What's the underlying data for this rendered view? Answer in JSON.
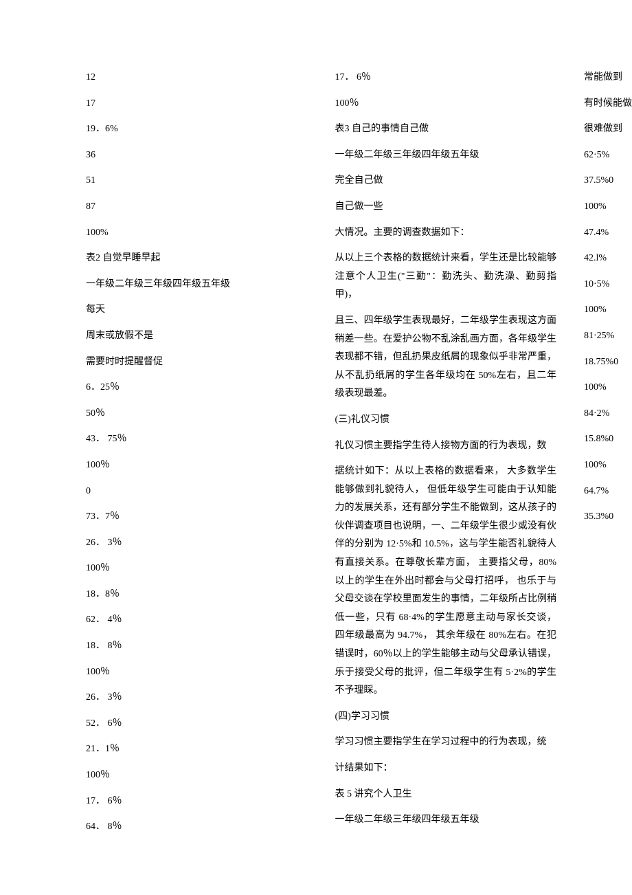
{
  "col1": {
    "lines_a": [
      "12",
      "17",
      "19．6%",
      "36",
      "51",
      "87",
      "100%"
    ],
    "table2_title": "表2  自觉早睡早起",
    "table2_grades": "一年级二年级三年级四年级五年级",
    "table2_rows": [
      "每天",
      "周末或放假不是",
      "需要时时提醒督促"
    ],
    "table2_vals": [
      "6．25％",
      "50％",
      "43． 75％",
      "100％",
      "0",
      "73．7％",
      "26． 3％",
      "100％",
      "18．8％",
      "62． 4％",
      "18． 8％",
      "100％",
      "26． 3％",
      "52． 6％",
      "21．1％",
      "100％",
      "17． 6％",
      "64． 8％",
      "17． 6％",
      "100％"
    ],
    "table3_title": "表3  自己的事情自己做",
    "table3_grades": "一年级二年级三年级四年级五年级",
    "table3_rows": [
      "完全自己做",
      "自己做一些"
    ],
    "table3_after": "大情况。主要的调查数据如下：",
    "summary1": "从以上三个表格的数据统计来看，学生还是比较能够注意个人卫生(\"三勤\"：勤洗头、勤洗澡、勤剪指甲)，"
  },
  "col2": {
    "para1": "且三、四年级学生表现最好，二年级学生表现这方面稍差一些。在爱护公物不乱涂乱画方面，各年级学生表现都不错，但乱扔果皮纸屑的现象似乎非常严重，从不乱扔纸屑的学生各年级均在 50%左右，且二年级表现最差。",
    "h3": "(三)礼仪习惯",
    "para2": "礼仪习惯主要指学生待人接物方面的行为表现，数",
    "para3": "据统计如下：从以上表格的数据看来， 大多数学生能够做到礼貌待人， 但低年级学生可能由于认知能力的发展关系，还有部分学生不能做到，这从孩子的伙伴调查项目也说明，一、二年级学生很少或没有伙伴的分别为 12·5%和 10.5%，这与学生能否礼貌待人有直接关系。在尊敬长辈方面， 主要指父母，80%以上的学生在外出时都会与父母打招呼， 也乐于与父母交谈在学校里面发生的事情，二年级所占比例稍低一些，只有 68·4%的学生愿意主动与家长交谈， 四年级最高为 94.7%， 其余年级在 80%左右。在犯错误时，60％以上的学生能够主动与父母承认错误，乐于接受父母的批评，但二年级学生有 5·2%的学生不予理睬。",
    "h4": "(四)学习习惯",
    "para4": "学习习惯主要指学生在学习过程中的行为表现，统",
    "para5": "计结果如下：",
    "table5_title": "表 5 讲究个人卫生",
    "table5_grades": "一年级二年级三年级四年级五年级",
    "table5_rows": [
      "常能做到",
      "有时候能做到",
      "很难做到"
    ],
    "table5_vals": [
      "62·5%",
      "37.5%0",
      "100%",
      "47.4%",
      "42.l%",
      "10·5%",
      "100%",
      "81·25%",
      "18.75%0",
      "100%",
      "84·2%",
      "15.8%0",
      "100%",
      "64.7%",
      "35.3%0"
    ]
  }
}
